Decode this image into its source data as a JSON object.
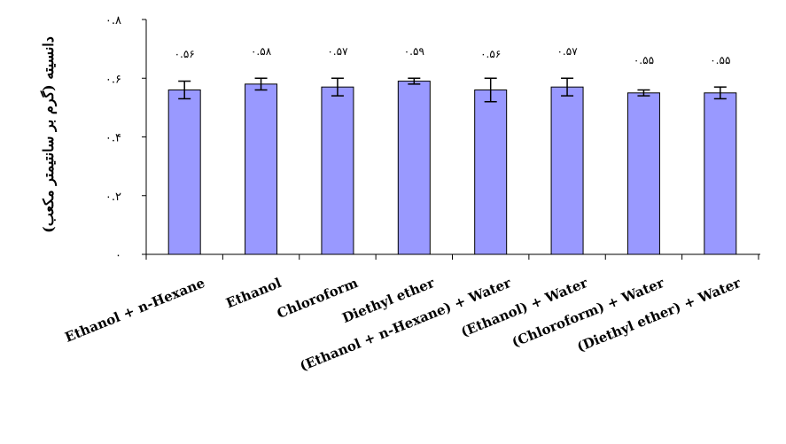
{
  "chart_data": {
    "type": "bar",
    "title": "",
    "xlabel": "",
    "ylabel": "دانسیته (گرم بر سانتیمتر مکعب)",
    "ylim": [
      0,
      0.8
    ],
    "yticks": [
      0,
      0.2,
      0.4,
      0.6,
      0.8
    ],
    "ytick_labels": [
      "۰",
      "۰.۲",
      "۰.۴",
      "۰.۶",
      "۰.۸"
    ],
    "categories": [
      "Ethanol + n-Hexane",
      "Ethanol",
      "Chloroform",
      "Diethyl ether",
      "(Ethanol + n-Hexane) + Water",
      "(Ethanol) + Water",
      "(Chloroform) + Water",
      "(Diethyl ether) + Water"
    ],
    "values": [
      0.56,
      0.58,
      0.57,
      0.59,
      0.56,
      0.57,
      0.55,
      0.55
    ],
    "errors": [
      0.03,
      0.02,
      0.03,
      0.01,
      0.04,
      0.03,
      0.01,
      0.02
    ],
    "data_labels": [
      "۰.۵۶",
      "۰.۵۸",
      "۰.۵۷",
      "۰.۵۹",
      "۰.۵۶",
      "۰.۵۷",
      "۰.۵۵",
      "۰.۵۵"
    ],
    "bar_color": "#9999ff",
    "bar_edge_color": "#000000",
    "grid": false,
    "legend": "none"
  }
}
